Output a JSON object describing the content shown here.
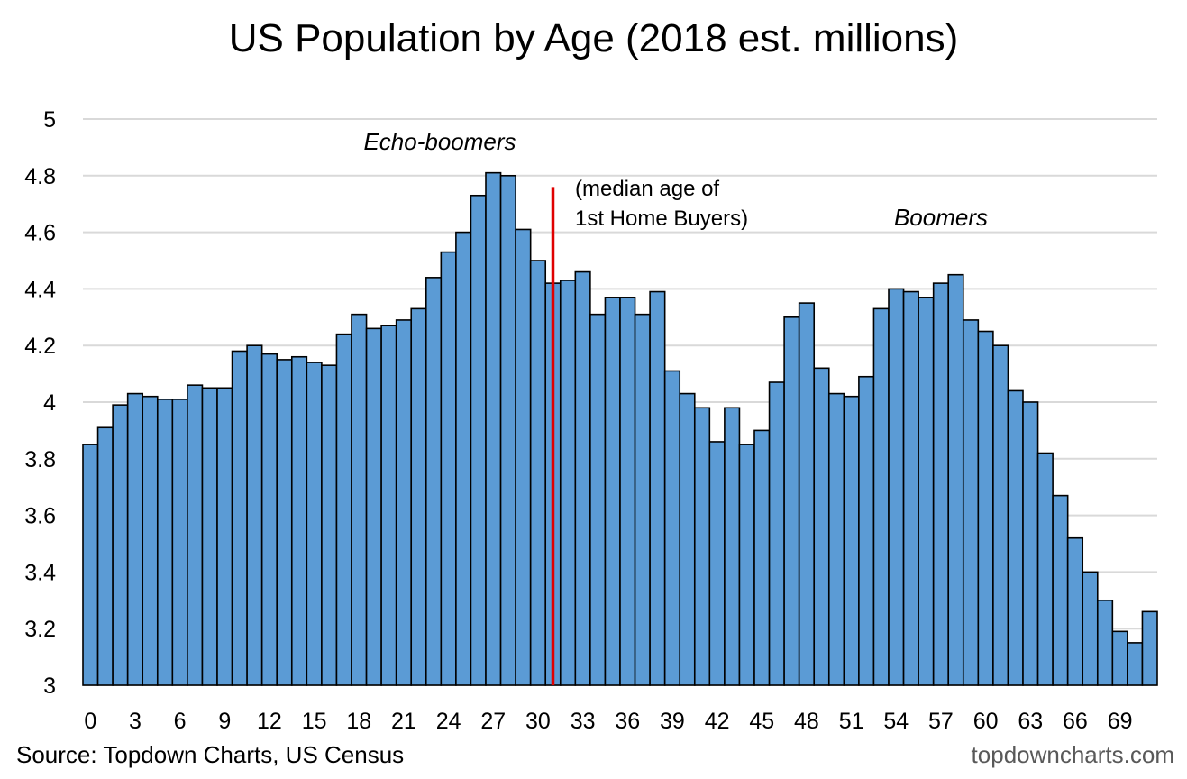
{
  "chart_data": {
    "type": "bar",
    "title": "US Population by Age (2018 est. millions)",
    "xlabel": "",
    "ylabel": "",
    "ylim": [
      3,
      5
    ],
    "yticks": [
      "3",
      "3.2",
      "3.4",
      "3.6",
      "3.8",
      "4",
      "4.2",
      "4.4",
      "4.6",
      "4.8",
      "5"
    ],
    "yticks_values": [
      3,
      3.2,
      3.4,
      3.6,
      3.8,
      4,
      4.2,
      4.4,
      4.6,
      4.8,
      5
    ],
    "xtick_labels": [
      "0",
      "3",
      "6",
      "9",
      "12",
      "15",
      "18",
      "21",
      "24",
      "27",
      "30",
      "33",
      "36",
      "39",
      "42",
      "45",
      "48",
      "51",
      "54",
      "57",
      "60",
      "63",
      "66",
      "69"
    ],
    "categories": [
      0,
      1,
      2,
      3,
      4,
      5,
      6,
      7,
      8,
      9,
      10,
      11,
      12,
      13,
      14,
      15,
      16,
      17,
      18,
      19,
      20,
      21,
      22,
      23,
      24,
      25,
      26,
      27,
      28,
      29,
      30,
      31,
      32,
      33,
      34,
      35,
      36,
      37,
      38,
      39,
      40,
      41,
      42,
      43,
      44,
      45,
      46,
      47,
      48,
      49,
      50,
      51,
      52,
      53,
      54,
      55,
      56,
      57,
      58,
      59,
      60,
      61,
      62,
      63,
      64,
      65,
      66,
      67,
      68,
      69,
      70,
      71
    ],
    "values": [
      3.85,
      3.91,
      3.99,
      4.03,
      4.02,
      4.01,
      4.01,
      4.06,
      4.05,
      4.05,
      4.18,
      4.2,
      4.17,
      4.15,
      4.16,
      4.14,
      4.13,
      4.24,
      4.31,
      4.26,
      4.27,
      4.29,
      4.33,
      4.44,
      4.53,
      4.6,
      4.73,
      4.81,
      4.8,
      4.61,
      4.5,
      4.42,
      4.43,
      4.46,
      4.31,
      4.37,
      4.37,
      4.31,
      4.39,
      4.11,
      4.03,
      3.98,
      3.86,
      3.98,
      3.85,
      3.9,
      4.07,
      4.3,
      4.35,
      4.12,
      4.03,
      4.02,
      4.09,
      4.33,
      4.4,
      4.39,
      4.37,
      4.42,
      4.45,
      4.29,
      4.25,
      4.2,
      4.04,
      4.0,
      3.82,
      3.67,
      3.52,
      3.4,
      3.3,
      3.19,
      3.15,
      3.26
    ],
    "bar_color": "#5B9BD5",
    "median_line_color": "#E00000",
    "median_line": {
      "x": 31.5,
      "y_top": 4.76
    },
    "annotations": {
      "echo": "Echo-boomers",
      "median1": "(median age of",
      "median2": "1st Home Buyers)",
      "boomers": "Boomers"
    },
    "grid": true,
    "legend": "none"
  },
  "footer": {
    "source": "Source: Topdown Charts, US Census",
    "site": "topdowncharts.com"
  }
}
